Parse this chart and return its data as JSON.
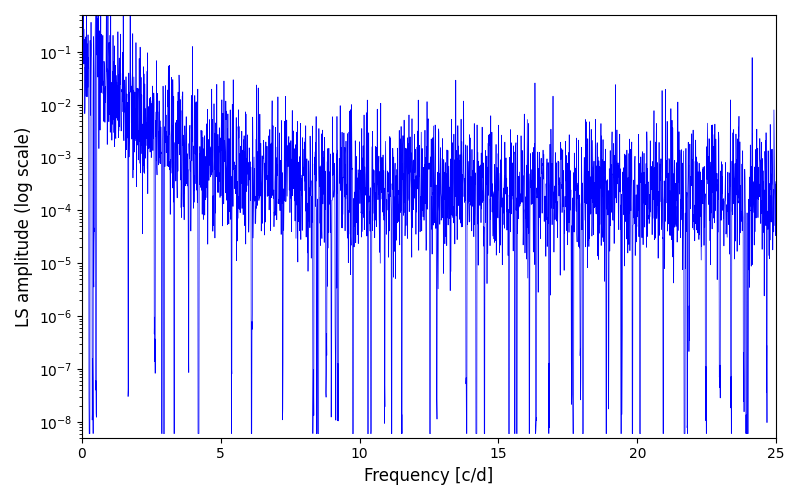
{
  "xlabel": "Frequency [c/d]",
  "ylabel": "LS amplitude (log scale)",
  "xlim": [
    0,
    25
  ],
  "ylim": [
    5e-09,
    0.5
  ],
  "line_color": "#0000ff",
  "line_width": 0.5,
  "background_color": "#ffffff",
  "figsize": [
    8.0,
    5.0
  ],
  "dpi": 100,
  "seed": 42,
  "n_points": 3000,
  "freq_max": 25.0
}
